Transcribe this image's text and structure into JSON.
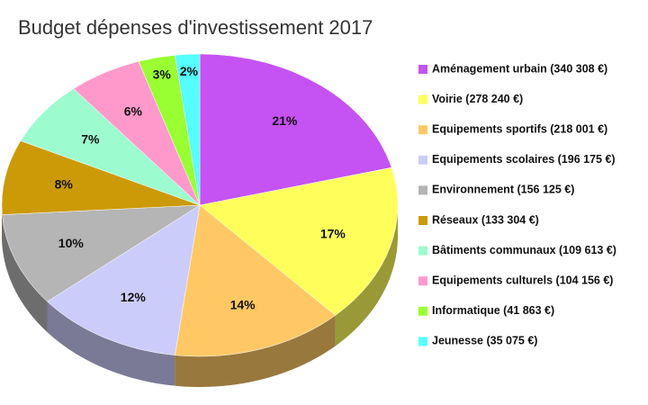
{
  "chart_data": {
    "type": "pie",
    "title": "Budget dépenses d'investissement 2017",
    "categories": [
      "Aménagement urbain (340 308 €)",
      "Voirie (278 240 €)",
      "Equipements sportifs (218 001 €)",
      "Equipements scolaires (196 175 €)",
      "Environnement (156 125 €)",
      "Réseaux (133 304 €)",
      "Bâtiments communaux (109 613 €)",
      "Equipements culturels (104 156 €)",
      "Informatique (41 863 €)",
      "Jeunesse (35 075 €)"
    ],
    "values": [
      21,
      17,
      14,
      12,
      10,
      8,
      7,
      6,
      3,
      2
    ],
    "value_labels": [
      "21%",
      "17%",
      "14%",
      "12%",
      "10%",
      "8%",
      "7%",
      "6%",
      "3%",
      "2%"
    ],
    "colors": [
      "#c552f2",
      "#ffff5c",
      "#ffc865",
      "#ccccfa",
      "#b5b5b5",
      "#cc9a06",
      "#9dfbd0",
      "#ff99cc",
      "#99ff33",
      "#55ffff"
    ],
    "legend": "right"
  }
}
